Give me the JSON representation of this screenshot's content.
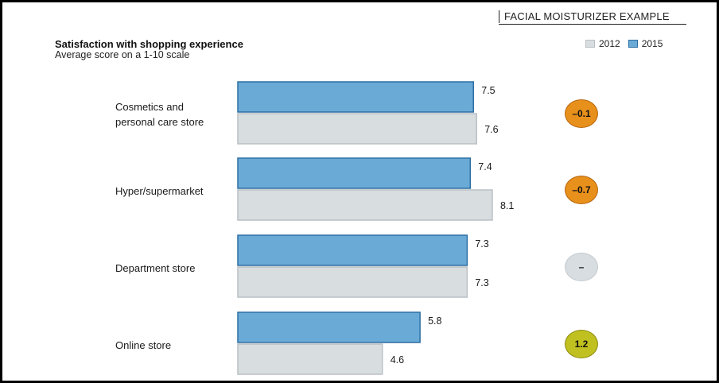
{
  "header": {
    "tag": "FACIAL MOISTURIZER EXAMPLE",
    "title": "Satisfaction with shopping experience",
    "subtitle": "Average score on a 1-10 scale"
  },
  "legend": [
    {
      "label": "2012",
      "color": "#d8dde0"
    },
    {
      "label": "2015",
      "color": "#6aaad6"
    }
  ],
  "chart_data": {
    "type": "bar",
    "orientation": "horizontal",
    "categories": [
      "Cosmetics and\npersonal care store",
      "Hyper/supermarket",
      "Department store",
      "Online store"
    ],
    "series": [
      {
        "name": "2015",
        "values": [
          7.5,
          7.4,
          7.3,
          5.8
        ],
        "color": "#6aaad6"
      },
      {
        "name": "2012",
        "values": [
          7.6,
          8.1,
          7.3,
          4.6
        ],
        "color": "#d8dde0"
      }
    ],
    "value_labels": {
      "2015": [
        "7.5",
        "7.4",
        "7.3",
        "5.8"
      ],
      "2012": [
        "7.6",
        "8.1",
        "7.3",
        "4.6"
      ]
    },
    "change": [
      "–0.1",
      "–0.7",
      "–",
      "1.2"
    ],
    "change_colors": [
      "#e8901c",
      "#e8901c",
      "#d7dde1",
      "#c0c020"
    ],
    "grid": false,
    "legend_position": "top-right"
  }
}
